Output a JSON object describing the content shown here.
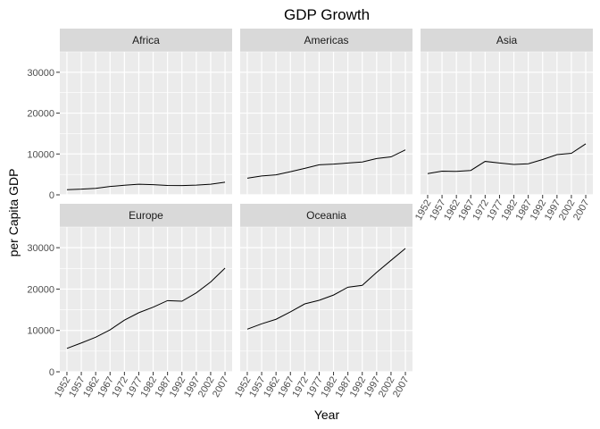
{
  "chart_data": {
    "type": "line",
    "title": "GDP Growth",
    "xlabel": "Year",
    "ylabel": "per Capita GDP",
    "x": [
      1952,
      1957,
      1962,
      1967,
      1972,
      1977,
      1982,
      1987,
      1992,
      1997,
      2002,
      2007
    ],
    "x_tick_labels": [
      "1952",
      "1957",
      "1962",
      "1967",
      "1972",
      "1977",
      "1982",
      "1987",
      "1992",
      "1997",
      "2002",
      "2007"
    ],
    "y_ticks": [
      0,
      10000,
      20000,
      30000
    ],
    "y_tick_labels": [
      "0",
      "10000",
      "20000",
      "30000"
    ],
    "ylim": [
      0,
      35000
    ],
    "facet_layout": "3 columns, 2 rows",
    "grid": true,
    "colors": {
      "panel_background": "#ebebeb",
      "strip_background": "#d9d9d9",
      "grid_line": "#ffffff",
      "series_line": "#000000"
    },
    "series": [
      {
        "facet": "Africa",
        "values": [
          1253,
          1385,
          1598,
          2050,
          2340,
          2586,
          2482,
          2283,
          2282,
          2379,
          2599,
          3089
        ]
      },
      {
        "facet": "Americas",
        "values": [
          4079,
          4616,
          4902,
          5668,
          6491,
          7352,
          7507,
          7794,
          8045,
          8889,
          9288,
          11003
        ]
      },
      {
        "facet": "Asia",
        "values": [
          5195,
          5788,
          5729,
          5971,
          8187,
          7791,
          7434,
          7608,
          8640,
          9834,
          10174,
          12473
        ]
      },
      {
        "facet": "Europe",
        "values": [
          5661,
          6963,
          8365,
          10143,
          12480,
          14284,
          15618,
          17214,
          17062,
          19077,
          21712,
          25055
        ]
      },
      {
        "facet": "Oceania",
        "values": [
          10298,
          11599,
          12696,
          14495,
          16417,
          17284,
          18555,
          20448,
          20894,
          24024,
          26939,
          29810
        ]
      }
    ]
  }
}
